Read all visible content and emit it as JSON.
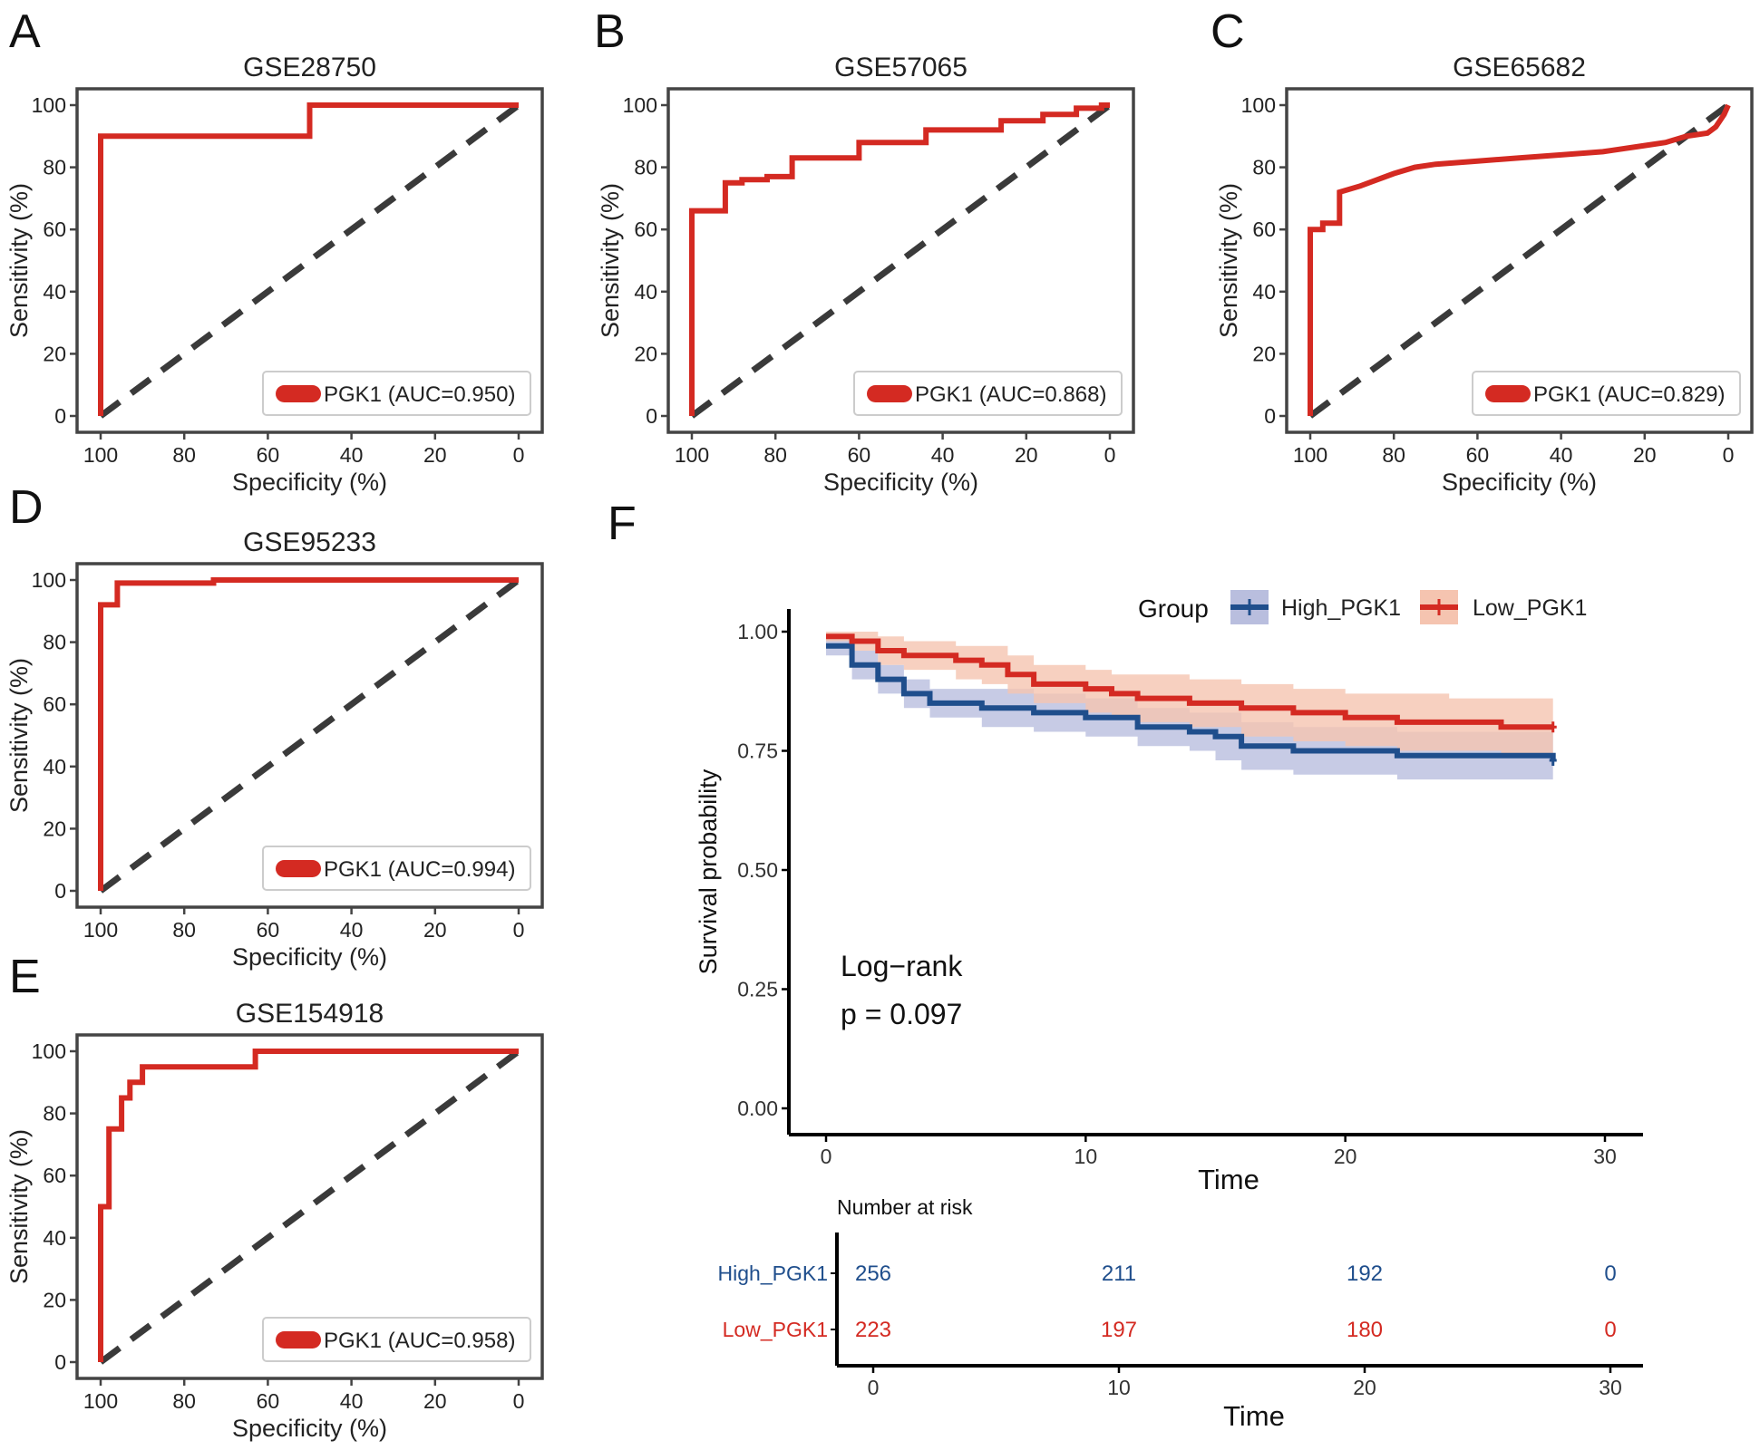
{
  "colors": {
    "roc_line": "#d42a22",
    "diagonal": "#3a3a3a",
    "frame": "#444444",
    "high": "#1f4e8c",
    "high_band": "#b9bede",
    "low": "#d42a22",
    "low_band": "#f5c4b0",
    "legend_box": "#cccccc"
  },
  "chart_data": [
    {
      "type": "line",
      "id": "A",
      "panel_label": "A",
      "title": "GSE28750",
      "xlabel": "Specificity (%)",
      "ylabel": "Sensitivity (%)",
      "xlim": [
        100,
        0
      ],
      "ylim": [
        0,
        100
      ],
      "x_ticks": [
        "100",
        "80",
        "60",
        "40",
        "20",
        "0"
      ],
      "y_ticks": [
        "0",
        "20",
        "40",
        "60",
        "80",
        "100"
      ],
      "legend": "PGK1 (AUC=0.950)",
      "series": [
        {
          "name": "PGK1",
          "specificity": [
            100,
            100,
            50,
            50,
            0
          ],
          "sensitivity": [
            0,
            90,
            90,
            100,
            100
          ]
        }
      ]
    },
    {
      "type": "line",
      "id": "B",
      "panel_label": "B",
      "title": "GSE57065",
      "xlabel": "Specificity (%)",
      "ylabel": "Sensitivity (%)",
      "xlim": [
        100,
        0
      ],
      "ylim": [
        0,
        100
      ],
      "x_ticks": [
        "100",
        "80",
        "60",
        "40",
        "20",
        "0"
      ],
      "y_ticks": [
        "0",
        "20",
        "40",
        "60",
        "80",
        "100"
      ],
      "legend": "PGK1 (AUC=0.868)",
      "series": [
        {
          "name": "PGK1",
          "specificity": [
            100,
            100,
            92,
            92,
            88,
            88,
            82,
            82,
            76,
            76,
            60,
            60,
            44,
            44,
            26,
            26,
            16,
            16,
            8,
            8,
            2,
            2,
            0
          ],
          "sensitivity": [
            0,
            66,
            66,
            75,
            75,
            76,
            76,
            77,
            77,
            83,
            83,
            88,
            88,
            92,
            92,
            95,
            95,
            97,
            97,
            99,
            99,
            100,
            100
          ]
        }
      ]
    },
    {
      "type": "line",
      "id": "C",
      "panel_label": "C",
      "title": "GSE65682",
      "xlabel": "Specificity (%)",
      "ylabel": "Sensitivity (%)",
      "xlim": [
        100,
        0
      ],
      "ylim": [
        0,
        100
      ],
      "x_ticks": [
        "100",
        "80",
        "60",
        "40",
        "20",
        "0"
      ],
      "y_ticks": [
        "0",
        "20",
        "40",
        "60",
        "80",
        "100"
      ],
      "legend": "PGK1 (AUC=0.829)",
      "series": [
        {
          "name": "PGK1",
          "specificity": [
            100,
            100,
            97,
            97,
            93,
            93,
            88,
            84,
            80,
            75,
            70,
            60,
            50,
            40,
            30,
            20,
            15,
            10,
            5,
            3,
            2,
            1,
            0
          ],
          "sensitivity": [
            0,
            60,
            60,
            62,
            62,
            72,
            74,
            76,
            78,
            80,
            81,
            82,
            83,
            84,
            85,
            87,
            88,
            90,
            91,
            93,
            95,
            97,
            100
          ]
        }
      ]
    },
    {
      "type": "line",
      "id": "D",
      "panel_label": "D",
      "title": "GSE95233",
      "xlabel": "Specificity (%)",
      "ylabel": "Sensitivity (%)",
      "xlim": [
        100,
        0
      ],
      "ylim": [
        0,
        100
      ],
      "x_ticks": [
        "100",
        "80",
        "60",
        "40",
        "20",
        "0"
      ],
      "y_ticks": [
        "0",
        "20",
        "40",
        "60",
        "80",
        "100"
      ],
      "legend": "PGK1 (AUC=0.994)",
      "series": [
        {
          "name": "PGK1",
          "specificity": [
            100,
            100,
            96,
            96,
            73,
            73,
            0
          ],
          "sensitivity": [
            0,
            92,
            92,
            99,
            99,
            100,
            100
          ]
        }
      ]
    },
    {
      "type": "line",
      "id": "E",
      "panel_label": "E",
      "title": "GSE154918",
      "xlabel": "Specificity (%)",
      "ylabel": "Sensitivity (%)",
      "xlim": [
        100,
        0
      ],
      "ylim": [
        0,
        100
      ],
      "x_ticks": [
        "100",
        "80",
        "60",
        "40",
        "20",
        "0"
      ],
      "y_ticks": [
        "0",
        "20",
        "40",
        "60",
        "80",
        "100"
      ],
      "legend": "PGK1 (AUC=0.958)",
      "series": [
        {
          "name": "PGK1",
          "specificity": [
            100,
            100,
            98,
            98,
            95,
            95,
            93,
            93,
            90,
            90,
            83,
            83,
            63,
            63,
            0
          ],
          "sensitivity": [
            0,
            50,
            50,
            75,
            75,
            85,
            85,
            90,
            90,
            95,
            95,
            95,
            95,
            100,
            100
          ]
        }
      ]
    },
    {
      "type": "line",
      "id": "F",
      "panel_label": "F",
      "xlabel": "Time",
      "ylabel": "Survival probability",
      "xlim": [
        0,
        30
      ],
      "ylim": [
        0,
        1
      ],
      "x_ticks": [
        "0",
        "10",
        "20",
        "30"
      ],
      "y_ticks": [
        "0.00",
        "0.25",
        "0.50",
        "0.75",
        "1.00"
      ],
      "legend_title": "Group",
      "legend_labels": [
        "High_PGK1",
        "Low_PGK1"
      ],
      "annotation_line1": "Log−rank",
      "annotation_line2": "p = 0.097",
      "series": [
        {
          "name": "High_PGK1",
          "time": [
            0,
            1,
            2,
            3,
            4,
            6,
            8,
            10,
            12,
            14,
            15,
            16,
            18,
            20,
            22,
            24,
            26,
            28
          ],
          "survival": [
            0.97,
            0.93,
            0.9,
            0.87,
            0.85,
            0.84,
            0.83,
            0.82,
            0.8,
            0.79,
            0.78,
            0.76,
            0.75,
            0.75,
            0.74,
            0.74,
            0.74,
            0.73
          ],
          "lower": [
            0.95,
            0.9,
            0.87,
            0.84,
            0.82,
            0.8,
            0.79,
            0.78,
            0.76,
            0.75,
            0.73,
            0.71,
            0.7,
            0.7,
            0.69,
            0.69,
            0.69,
            0.68
          ],
          "upper": [
            0.99,
            0.96,
            0.93,
            0.9,
            0.88,
            0.88,
            0.87,
            0.86,
            0.84,
            0.83,
            0.83,
            0.81,
            0.8,
            0.8,
            0.79,
            0.79,
            0.79,
            0.79
          ]
        },
        {
          "name": "Low_PGK1",
          "time": [
            0,
            1,
            2,
            3,
            5,
            6,
            7,
            8,
            10,
            11,
            12,
            14,
            16,
            18,
            20,
            22,
            24,
            26,
            28
          ],
          "survival": [
            0.99,
            0.98,
            0.96,
            0.95,
            0.94,
            0.93,
            0.91,
            0.89,
            0.88,
            0.87,
            0.86,
            0.85,
            0.84,
            0.83,
            0.82,
            0.81,
            0.81,
            0.8,
            0.8
          ],
          "lower": [
            0.98,
            0.96,
            0.93,
            0.92,
            0.9,
            0.89,
            0.87,
            0.85,
            0.83,
            0.82,
            0.81,
            0.8,
            0.78,
            0.77,
            0.76,
            0.75,
            0.75,
            0.74,
            0.74
          ],
          "upper": [
            1.0,
            1.0,
            0.99,
            0.98,
            0.97,
            0.97,
            0.95,
            0.93,
            0.92,
            0.91,
            0.91,
            0.9,
            0.89,
            0.88,
            0.87,
            0.87,
            0.86,
            0.86,
            0.86
          ]
        }
      ]
    },
    {
      "type": "table",
      "id": "F-risk",
      "title": "Number at risk",
      "xlabel": "Time",
      "x_ticks": [
        "0",
        "10",
        "20",
        "30"
      ],
      "times": [
        0,
        10,
        20,
        30
      ],
      "rows": [
        {
          "group": "High_PGK1",
          "counts": [
            "256",
            "211",
            "192",
            "0"
          ]
        },
        {
          "group": "Low_PGK1",
          "counts": [
            "223",
            "197",
            "180",
            "0"
          ]
        }
      ]
    }
  ]
}
